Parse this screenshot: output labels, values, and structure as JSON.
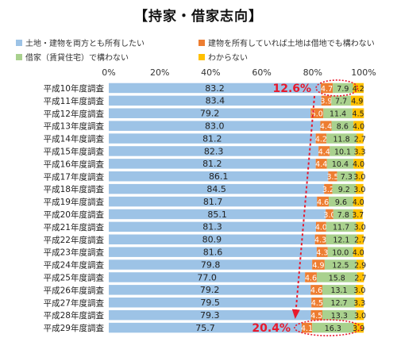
{
  "chart_data": {
    "type": "bar",
    "orientation": "horizontal",
    "stacked": "percent",
    "title": "【持家・借家志向】",
    "xlim": [
      0,
      100
    ],
    "x_ticks": [
      "0%",
      "20%",
      "40%",
      "60%",
      "80%",
      "100%"
    ],
    "categories": [
      "平成10年度調査",
      "平成11年度調査",
      "平成12年度調査",
      "平成13年度調査",
      "平成14年度調査",
      "平成15年度調査",
      "平成16年度調査",
      "平成17年度調査",
      "平成18年度調査",
      "平成19年度調査",
      "平成20年度調査",
      "平成21年度調査",
      "平成22年度調査",
      "平成23年度調査",
      "平成24年度調査",
      "平成25年度調査",
      "平成26年度調査",
      "平成27年度調査",
      "平成28年度調査",
      "平成29年度調査"
    ],
    "series": [
      {
        "name": "土地・建物を両方とも所有したい",
        "color": "#9dc3e6",
        "values": [
          83.2,
          83.4,
          79.2,
          83.0,
          81.2,
          82.3,
          81.2,
          86.1,
          84.5,
          81.7,
          85.1,
          81.3,
          80.9,
          81.6,
          79.8,
          77.0,
          79.2,
          79.5,
          79.3,
          75.7
        ],
        "labels": [
          "83.2",
          "83.4",
          "79.2",
          "83.0",
          "81.2",
          "82.3",
          "81.2",
          "86.1",
          "84.5",
          "81.7",
          "85.1",
          "81.3",
          "80.9",
          "81.6",
          "79.8",
          "77.0",
          "79.2",
          "79.5",
          "79.3",
          "75.7"
        ]
      },
      {
        "name": "建物を所有していれば土地は借地でも構わない",
        "color": "#ed7d31",
        "values": [
          4.7,
          3.9,
          5.0,
          4.4,
          4.2,
          4.4,
          4.4,
          3.5,
          3.2,
          4.6,
          3.0,
          4.0,
          4.3,
          4.3,
          4.9,
          4.6,
          4.6,
          4.5,
          4.5,
          4.1
        ],
        "labels": [
          "4.7",
          "3.9",
          "5.0",
          "4.4",
          "4.2",
          "4.4",
          "4.4",
          "3.5",
          "3.2",
          "4.6",
          "3.0",
          "4.0",
          "4.3",
          "4.3",
          "4.9",
          "4.6",
          "4.6",
          "4.5",
          "4.5",
          "4.1"
        ]
      },
      {
        "name": "借家（賃貸住宅）で構わない",
        "color": "#a9d18e",
        "values": [
          7.9,
          7.7,
          11.4,
          8.6,
          11.8,
          10.1,
          10.4,
          7.3,
          9.2,
          9.6,
          7.8,
          11.7,
          12.1,
          10.0,
          12.5,
          15.8,
          13.1,
          12.7,
          13.3,
          16.3
        ],
        "labels": [
          "7.9",
          "7.7",
          "11.4",
          "8.6",
          "11.8",
          "10.1",
          "10.4",
          "7.3",
          "9.2",
          "9.6",
          "7.8",
          "11.7",
          "12.1",
          "10.0",
          "12.5",
          "15.8",
          "13.1",
          "12.7",
          "13.3",
          "16.3"
        ]
      },
      {
        "name": "わからない",
        "color": "#ffc000",
        "values": [
          4.2,
          4.9,
          4.5,
          4.0,
          2.7,
          3.3,
          4.0,
          3.0,
          3.0,
          4.0,
          3.7,
          3.0,
          2.7,
          4.0,
          2.9,
          2.7,
          3.0,
          3.3,
          3.0,
          3.9
        ],
        "labels": [
          "4.2",
          "4.9",
          "4.5",
          "4.0",
          "2.7",
          "3.3",
          "4.0",
          "3.0",
          "3.0",
          "4.0",
          "3.7",
          "3.0",
          "2.7",
          "4.0",
          "2.9",
          "2.7",
          "3.0",
          "3.3",
          "3.0",
          "3.9"
        ]
      }
    ],
    "annotations": [
      {
        "text": "12.6%",
        "category_index": 0,
        "color": "#e8192c"
      },
      {
        "text": "20.4%",
        "category_index": 19,
        "color": "#e8192c"
      }
    ],
    "legend_position": "top",
    "grid": false
  }
}
